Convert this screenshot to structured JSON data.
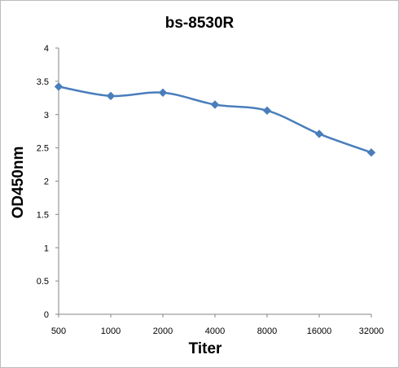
{
  "chart_data": {
    "type": "line",
    "title": "bs-8530R",
    "xlabel": "Titer",
    "ylabel": "OD450nm",
    "categories": [
      "500",
      "1000",
      "2000",
      "4000",
      "8000",
      "16000",
      "32000"
    ],
    "series": [
      {
        "values": [
          3.42,
          3.28,
          3.33,
          3.15,
          3.06,
          2.71,
          2.43
        ],
        "color": "#4a7ebb"
      }
    ],
    "ylim": [
      0,
      4
    ],
    "yticks": [
      "0",
      "0.5",
      "1",
      "1.5",
      "2",
      "2.5",
      "3",
      "3.5",
      "4"
    ],
    "grid": false,
    "legend": "none",
    "marker": "diamond",
    "smooth": true
  }
}
